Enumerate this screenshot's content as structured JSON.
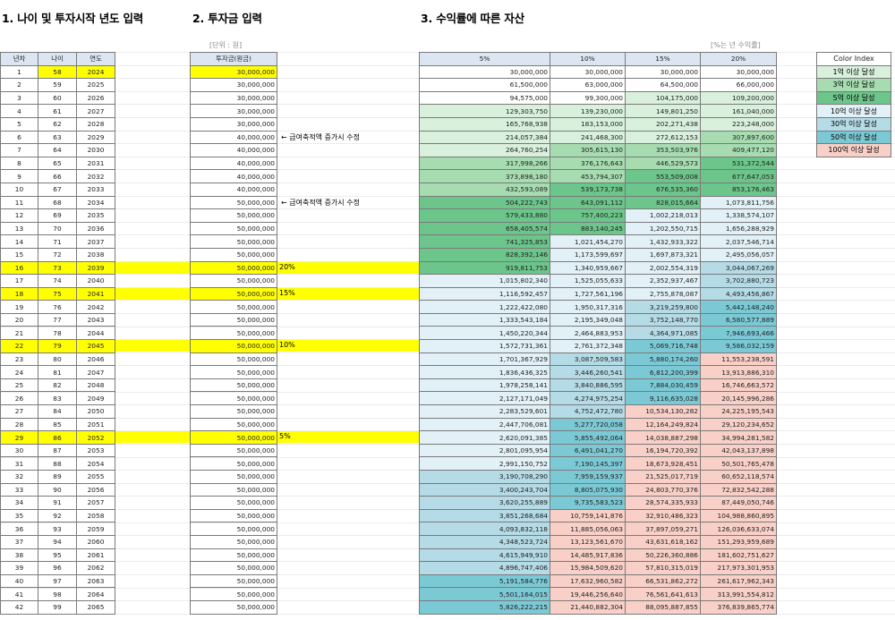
{
  "titles": {
    "section1": "1. 나이 및 투자시작 년도 입력",
    "section2": "2. 투자금 입력",
    "section3": "3. 수익률에 따른 자산"
  },
  "notes": {
    "unit": "[단위 : 원]",
    "rate_note": "[%는 년 수익률]"
  },
  "left_table": {
    "headers": [
      "년차",
      "나이",
      "연도"
    ]
  },
  "invest_table": {
    "header": "투자금(원금)"
  },
  "side_notes": {
    "row6": "← 급여축적액 증가시 수정",
    "row11": "← 급여축적액 증가시 수정",
    "row16": "20%",
    "row18": "15%",
    "row22": "10%",
    "row29": "5%"
  },
  "rate_table": {
    "headers": [
      "5%",
      "10%",
      "15%",
      "20%"
    ]
  },
  "legend": {
    "title": "Color Index",
    "items": [
      {
        "label": "1억 이상 달성",
        "color": "#d8f0dc"
      },
      {
        "label": "3억 이상 달성",
        "color": "#a6dcb0"
      },
      {
        "label": "5억 이상 달성",
        "color": "#6cc58a"
      },
      {
        "label": "10억 이상 달성",
        "color": "#e2f1f7"
      },
      {
        "label": "30억 이상 달성",
        "color": "#b4dbe6"
      },
      {
        "label": "50억 이상 달성",
        "color": "#7cc9d6"
      },
      {
        "label": "100억 이상 달성",
        "color": "#f8d0c8"
      }
    ]
  },
  "rows": [
    {
      "n": "1",
      "age": "58",
      "year": "2024",
      "inv": "30,000,000",
      "r5": "30,000,000",
      "r10": "30,000,000",
      "r15": "30,000,000",
      "r20": "30,000,000"
    },
    {
      "n": "2",
      "age": "59",
      "year": "2025",
      "inv": "30,000,000",
      "r5": "61,500,000",
      "r10": "63,000,000",
      "r15": "64,500,000",
      "r20": "66,000,000"
    },
    {
      "n": "3",
      "age": "60",
      "year": "2026",
      "inv": "30,000,000",
      "r5": "94,575,000",
      "r10": "99,300,000",
      "r15": "104,175,000",
      "r20": "109,200,000"
    },
    {
      "n": "4",
      "age": "61",
      "year": "2027",
      "inv": "30,000,000",
      "r5": "129,303,750",
      "r10": "139,230,000",
      "r15": "149,801,250",
      "r20": "161,040,000"
    },
    {
      "n": "5",
      "age": "62",
      "year": "2028",
      "inv": "30,000,000",
      "r5": "165,768,938",
      "r10": "183,153,000",
      "r15": "202,271,438",
      "r20": "223,248,000"
    },
    {
      "n": "6",
      "age": "63",
      "year": "2029",
      "inv": "40,000,000",
      "r5": "214,057,384",
      "r10": "241,468,300",
      "r15": "272,612,153",
      "r20": "307,897,600"
    },
    {
      "n": "7",
      "age": "64",
      "year": "2030",
      "inv": "40,000,000",
      "r5": "264,760,254",
      "r10": "305,615,130",
      "r15": "353,503,976",
      "r20": "409,477,120"
    },
    {
      "n": "8",
      "age": "65",
      "year": "2031",
      "inv": "40,000,000",
      "r5": "317,998,266",
      "r10": "376,176,643",
      "r15": "446,529,573",
      "r20": "531,372,544"
    },
    {
      "n": "9",
      "age": "66",
      "year": "2032",
      "inv": "40,000,000",
      "r5": "373,898,180",
      "r10": "453,794,307",
      "r15": "553,509,008",
      "r20": "677,647,053"
    },
    {
      "n": "10",
      "age": "67",
      "year": "2033",
      "inv": "40,000,000",
      "r5": "432,593,089",
      "r10": "539,173,738",
      "r15": "676,535,360",
      "r20": "853,176,463"
    },
    {
      "n": "11",
      "age": "68",
      "year": "2034",
      "inv": "50,000,000",
      "r5": "504,222,743",
      "r10": "643,091,112",
      "r15": "828,015,664",
      "r20": "1,073,811,756"
    },
    {
      "n": "12",
      "age": "69",
      "year": "2035",
      "inv": "50,000,000",
      "r5": "579,433,880",
      "r10": "757,400,223",
      "r15": "1,002,218,013",
      "r20": "1,338,574,107"
    },
    {
      "n": "13",
      "age": "70",
      "year": "2036",
      "inv": "50,000,000",
      "r5": "658,405,574",
      "r10": "883,140,245",
      "r15": "1,202,550,715",
      "r20": "1,656,288,929"
    },
    {
      "n": "14",
      "age": "71",
      "year": "2037",
      "inv": "50,000,000",
      "r5": "741,325,853",
      "r10": "1,021,454,270",
      "r15": "1,432,933,322",
      "r20": "2,037,546,714"
    },
    {
      "n": "15",
      "age": "72",
      "year": "2038",
      "inv": "50,000,000",
      "r5": "828,392,146",
      "r10": "1,173,599,697",
      "r15": "1,697,873,321",
      "r20": "2,495,056,057"
    },
    {
      "n": "16",
      "age": "73",
      "year": "2039",
      "inv": "50,000,000",
      "r5": "919,811,753",
      "r10": "1,340,959,667",
      "r15": "2,002,554,319",
      "r20": "3,044,067,269"
    },
    {
      "n": "17",
      "age": "74",
      "year": "2040",
      "inv": "50,000,000",
      "r5": "1,015,802,340",
      "r10": "1,525,055,633",
      "r15": "2,352,937,467",
      "r20": "3,702,880,723"
    },
    {
      "n": "18",
      "age": "75",
      "year": "2041",
      "inv": "50,000,000",
      "r5": "1,116,592,457",
      "r10": "1,727,561,196",
      "r15": "2,755,878,087",
      "r20": "4,493,456,867"
    },
    {
      "n": "19",
      "age": "76",
      "year": "2042",
      "inv": "50,000,000",
      "r5": "1,222,422,080",
      "r10": "1,950,317,316",
      "r15": "3,219,259,800",
      "r20": "5,442,148,240"
    },
    {
      "n": "20",
      "age": "77",
      "year": "2043",
      "inv": "50,000,000",
      "r5": "1,333,543,184",
      "r10": "2,195,349,048",
      "r15": "3,752,148,770",
      "r20": "6,580,577,889"
    },
    {
      "n": "21",
      "age": "78",
      "year": "2044",
      "inv": "50,000,000",
      "r5": "1,450,220,344",
      "r10": "2,464,883,953",
      "r15": "4,364,971,085",
      "r20": "7,946,693,466"
    },
    {
      "n": "22",
      "age": "79",
      "year": "2045",
      "inv": "50,000,000",
      "r5": "1,572,731,361",
      "r10": "2,761,372,348",
      "r15": "5,069,716,748",
      "r20": "9,586,032,159"
    },
    {
      "n": "23",
      "age": "80",
      "year": "2046",
      "inv": "50,000,000",
      "r5": "1,701,367,929",
      "r10": "3,087,509,583",
      "r15": "5,880,174,260",
      "r20": "11,553,238,591"
    },
    {
      "n": "24",
      "age": "81",
      "year": "2047",
      "inv": "50,000,000",
      "r5": "1,836,436,325",
      "r10": "3,446,260,541",
      "r15": "6,812,200,399",
      "r20": "13,913,886,310"
    },
    {
      "n": "25",
      "age": "82",
      "year": "2048",
      "inv": "50,000,000",
      "r5": "1,978,258,141",
      "r10": "3,840,886,595",
      "r15": "7,884,030,459",
      "r20": "16,746,663,572"
    },
    {
      "n": "26",
      "age": "83",
      "year": "2049",
      "inv": "50,000,000",
      "r5": "2,127,171,049",
      "r10": "4,274,975,254",
      "r15": "9,116,635,028",
      "r20": "20,145,996,286"
    },
    {
      "n": "27",
      "age": "84",
      "year": "2050",
      "inv": "50,000,000",
      "r5": "2,283,529,601",
      "r10": "4,752,472,780",
      "r15": "10,534,130,282",
      "r20": "24,225,195,543"
    },
    {
      "n": "28",
      "age": "85",
      "year": "2051",
      "inv": "50,000,000",
      "r5": "2,447,706,081",
      "r10": "5,277,720,058",
      "r15": "12,164,249,824",
      "r20": "29,120,234,652"
    },
    {
      "n": "29",
      "age": "86",
      "year": "2052",
      "inv": "50,000,000",
      "r5": "2,620,091,385",
      "r10": "5,855,492,064",
      "r15": "14,038,887,298",
      "r20": "34,994,281,582"
    },
    {
      "n": "30",
      "age": "87",
      "year": "2053",
      "inv": "50,000,000",
      "r5": "2,801,095,954",
      "r10": "6,491,041,270",
      "r15": "16,194,720,392",
      "r20": "42,043,137,898"
    },
    {
      "n": "31",
      "age": "88",
      "year": "2054",
      "inv": "50,000,000",
      "r5": "2,991,150,752",
      "r10": "7,190,145,397",
      "r15": "18,673,928,451",
      "r20": "50,501,765,478"
    },
    {
      "n": "32",
      "age": "89",
      "year": "2055",
      "inv": "50,000,000",
      "r5": "3,190,708,290",
      "r10": "7,959,159,937",
      "r15": "21,525,017,719",
      "r20": "60,652,118,574"
    },
    {
      "n": "33",
      "age": "90",
      "year": "2056",
      "inv": "50,000,000",
      "r5": "3,400,243,704",
      "r10": "8,805,075,930",
      "r15": "24,803,770,376",
      "r20": "72,832,542,288"
    },
    {
      "n": "34",
      "age": "91",
      "year": "2057",
      "inv": "50,000,000",
      "r5": "3,620,255,889",
      "r10": "9,735,583,523",
      "r15": "28,574,335,933",
      "r20": "87,449,050,746"
    },
    {
      "n": "35",
      "age": "92",
      "year": "2058",
      "inv": "50,000,000",
      "r5": "3,851,268,684",
      "r10": "10,759,141,876",
      "r15": "32,910,486,323",
      "r20": "104,988,860,895"
    },
    {
      "n": "36",
      "age": "93",
      "year": "2059",
      "inv": "50,000,000",
      "r5": "4,093,832,118",
      "r10": "11,885,056,063",
      "r15": "37,897,059,271",
      "r20": "126,036,633,074"
    },
    {
      "n": "37",
      "age": "94",
      "year": "2060",
      "inv": "50,000,000",
      "r5": "4,348,523,724",
      "r10": "13,123,561,670",
      "r15": "43,631,618,162",
      "r20": "151,293,959,689"
    },
    {
      "n": "38",
      "age": "95",
      "year": "2061",
      "inv": "50,000,000",
      "r5": "4,615,949,910",
      "r10": "14,485,917,836",
      "r15": "50,226,360,886",
      "r20": "181,602,751,627"
    },
    {
      "n": "39",
      "age": "96",
      "year": "2062",
      "inv": "50,000,000",
      "r5": "4,896,747,406",
      "r10": "15,984,509,620",
      "r15": "57,810,315,019",
      "r20": "217,973,301,953"
    },
    {
      "n": "40",
      "age": "97",
      "year": "2063",
      "inv": "50,000,000",
      "r5": "5,191,584,776",
      "r10": "17,632,960,582",
      "r15": "66,531,862,272",
      "r20": "261,617,962,343"
    },
    {
      "n": "41",
      "age": "98",
      "year": "2064",
      "inv": "50,000,000",
      "r5": "5,501,164,015",
      "r10": "19,446,256,640",
      "r15": "76,561,641,613",
      "r20": "313,991,554,812"
    },
    {
      "n": "42",
      "age": "99",
      "year": "2065",
      "inv": "50,000,000",
      "r5": "5,826,222,215",
      "r10": "21,440,882,304",
      "r15": "88,095,887,855",
      "r20": "376,839,865,774"
    }
  ]
}
